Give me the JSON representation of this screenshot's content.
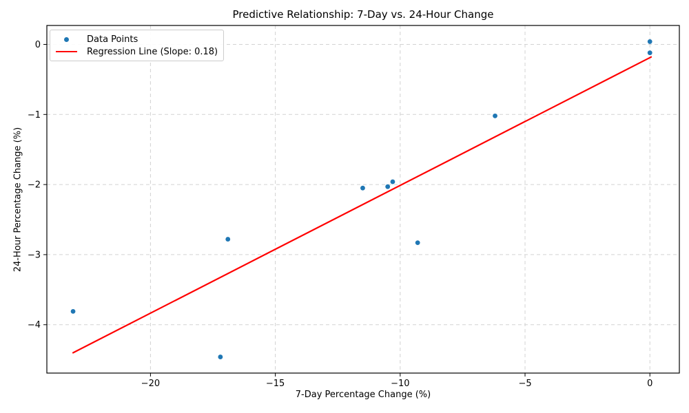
{
  "chart_data": {
    "type": "scatter",
    "title": "Predictive Relationship: 7-Day vs. 24-Hour Change",
    "xlabel": "7-Day Percentage Change (%)",
    "ylabel": "24-Hour Percentage Change (%)",
    "xlim": [
      -24.15,
      1.18
    ],
    "ylim": [
      -4.69,
      0.27
    ],
    "grid": true,
    "x_ticks": {
      "values": [
        -20,
        -15,
        -10,
        -5,
        0
      ],
      "labels": [
        "−20",
        "−15",
        "−10",
        "−5",
        "0"
      ]
    },
    "y_ticks": {
      "values": [
        0,
        -1,
        -2,
        -3,
        -4
      ],
      "labels": [
        "0",
        "−1",
        "−2",
        "−3",
        "−4"
      ]
    },
    "legend": {
      "position": "upper-left",
      "entries": [
        "Data Points",
        "Regression Line (Slope: 0.18)"
      ]
    },
    "series": [
      {
        "name": "Data Points",
        "type": "scatter",
        "color": "#1f77b4",
        "marker_radius": 3.4,
        "points": [
          [
            0.0,
            0.04
          ],
          [
            0.0,
            -0.12
          ],
          [
            -6.2,
            -1.02
          ],
          [
            -11.5,
            -2.05
          ],
          [
            -10.5,
            -2.03
          ],
          [
            -10.3,
            -1.96
          ],
          [
            -16.9,
            -2.78
          ],
          [
            -9.3,
            -2.83
          ],
          [
            -23.1,
            -3.81
          ],
          [
            -17.2,
            -4.46
          ]
        ]
      },
      {
        "name": "Regression Line (Slope: 0.18)",
        "type": "line",
        "color": "#ff0000",
        "slope": 0.18,
        "x_start": -23.1,
        "y_start": -4.4,
        "x_end": 0.05,
        "y_end": -0.18,
        "line_width": 2.2
      }
    ],
    "colors": {
      "background": "#ffffff",
      "scatter": "#1f77b4",
      "regression": "#ff0000",
      "grid": "#d2d2d2",
      "spine": "#000000",
      "text": "#000000"
    }
  }
}
